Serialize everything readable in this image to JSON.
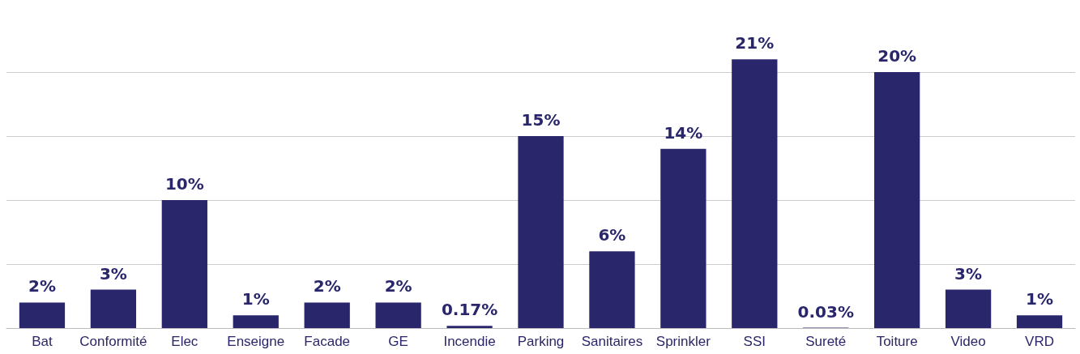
{
  "chart_data": {
    "type": "bar",
    "categories": [
      "Bat",
      "Conformité",
      "Elec",
      "Enseigne",
      "Facade",
      "GE",
      "Incendie",
      "Parking",
      "Sanitaires",
      "Sprinkler",
      "SSI",
      "Sureté",
      "Toiture",
      "Video",
      "VRD"
    ],
    "values": [
      2,
      3,
      10,
      1,
      2,
      2,
      0.17,
      15,
      6,
      14,
      21,
      0.03,
      20,
      3,
      1
    ],
    "value_labels": [
      "2%",
      "3%",
      "10%",
      "1%",
      "2%",
      "2%",
      "0.17%",
      "15%",
      "6%",
      "14%",
      "21%",
      "0.03%",
      "20%",
      "3%",
      "1%"
    ],
    "color": "#29266b",
    "yticks": [
      {
        "value": 0,
        "label": null
      },
      {
        "value": 5,
        "label": null
      },
      {
        "value": 10,
        "label": null
      },
      {
        "value": 15,
        "label": null
      },
      {
        "value": 20,
        "label": null
      }
    ],
    "grid": "y",
    "tick_labels": "x"
  }
}
